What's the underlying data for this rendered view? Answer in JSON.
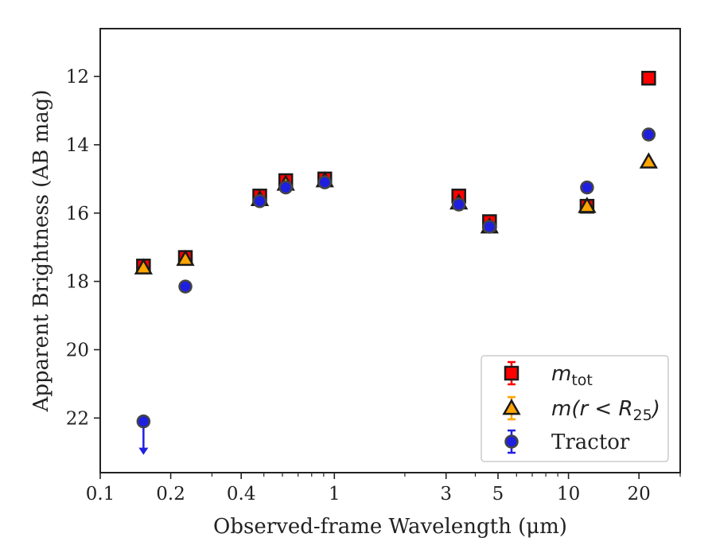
{
  "chart_data": {
    "type": "scatter",
    "title": "",
    "xlabel": "Observed-frame Wavelength (μm)",
    "ylabel": "Apparent Brightness (AB mag)",
    "xscale": "log",
    "yinverted": true,
    "xlim": [
      0.1,
      30
    ],
    "ylim": [
      23.6,
      10.6
    ],
    "xticks": [
      {
        "value": 0.1,
        "label": "0.1"
      },
      {
        "value": 0.2,
        "label": "0.2"
      },
      {
        "value": 0.4,
        "label": "0.4"
      },
      {
        "value": 1,
        "label": "1"
      },
      {
        "value": 3,
        "label": "3"
      },
      {
        "value": 5,
        "label": "5"
      },
      {
        "value": 10,
        "label": "10"
      },
      {
        "value": 20,
        "label": "20"
      }
    ],
    "yticks": [
      {
        "value": 12,
        "label": "12"
      },
      {
        "value": 14,
        "label": "14"
      },
      {
        "value": 16,
        "label": "16"
      },
      {
        "value": 18,
        "label": "18"
      },
      {
        "value": 20,
        "label": "20"
      },
      {
        "value": 22,
        "label": "22"
      }
    ],
    "grid": false,
    "legend_position": "lower-right",
    "series": [
      {
        "name": "m_tot",
        "legend_main": "m",
        "legend_sub": "tot",
        "marker": "square",
        "color": "#ff0000",
        "edge_color": "#1a1a1a",
        "errorbar_color": "#ff0000",
        "x": [
          0.153,
          0.231,
          0.48,
          0.62,
          0.91,
          3.4,
          4.6,
          12.0,
          22.0
        ],
        "y": [
          17.55,
          17.3,
          15.5,
          15.05,
          15.0,
          15.5,
          16.25,
          15.8,
          12.05
        ]
      },
      {
        "name": "m(r<R_25)",
        "legend_main": "m(r < R",
        "legend_sub": "25",
        "legend_close": ")",
        "marker": "triangle",
        "color": "#ffa500",
        "edge_color": "#1a1a1a",
        "errorbar_color": "#ffa500",
        "x": [
          0.153,
          0.231,
          0.48,
          0.62,
          0.91,
          3.4,
          4.6,
          12.0,
          22.0
        ],
        "y": [
          17.6,
          17.35,
          15.6,
          15.15,
          15.05,
          15.7,
          16.4,
          15.8,
          14.5
        ]
      },
      {
        "name": "Tractor",
        "legend_label": "Tractor",
        "marker": "circle",
        "color": "#1f1fe0",
        "edge_color": "#444444",
        "errorbar_color": "#2020e0",
        "x": [
          0.153,
          0.231,
          0.48,
          0.62,
          0.91,
          3.4,
          4.6,
          12.0,
          22.0
        ],
        "y": [
          22.1,
          18.15,
          15.65,
          15.25,
          15.1,
          15.75,
          16.4,
          15.25,
          13.7
        ],
        "upper_limit_index": 0
      }
    ]
  }
}
